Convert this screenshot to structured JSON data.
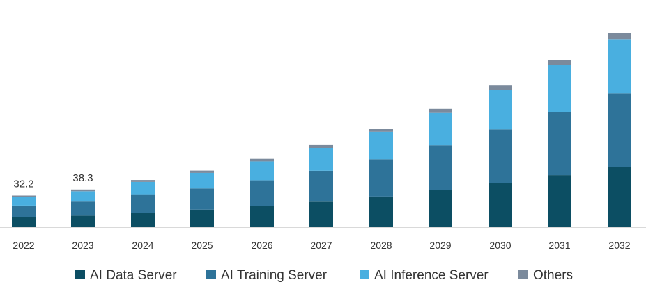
{
  "chart_data": {
    "type": "bar",
    "stacked": true,
    "title": "",
    "xlabel": "",
    "ylabel": "",
    "categories": [
      "2022",
      "2023",
      "2024",
      "2025",
      "2026",
      "2027",
      "2028",
      "2029",
      "2030",
      "2031",
      "2032"
    ],
    "series": [
      {
        "name": "AI Data Server",
        "color": "#0c4e63",
        "values": [
          9.9,
          11.7,
          14.8,
          17.8,
          21.5,
          25.9,
          31.2,
          37.6,
          44.9,
          53.0,
          61.5
        ]
      },
      {
        "name": "AI Training Server",
        "color": "#2e7399",
        "values": [
          12.1,
          14.3,
          18.0,
          21.6,
          26.2,
          31.5,
          37.9,
          45.7,
          54.6,
          64.4,
          74.8
        ]
      },
      {
        "name": "AI Inference Server",
        "color": "#49afe0",
        "values": [
          8.9,
          10.5,
          13.2,
          15.9,
          19.2,
          23.2,
          27.9,
          33.6,
          40.2,
          47.5,
          55.1
        ]
      },
      {
        "name": "Others",
        "color": "#7b8a9c",
        "values": [
          1.3,
          1.8,
          2.0,
          2.3,
          2.6,
          2.9,
          3.2,
          3.5,
          4.4,
          5.3,
          6.1
        ]
      }
    ],
    "data_labels": [
      {
        "category": "2022",
        "text": "32.2"
      },
      {
        "category": "2023",
        "text": "38.3"
      }
    ],
    "ylim": [
      0,
      200
    ],
    "grid": false,
    "legend": "bottom"
  }
}
